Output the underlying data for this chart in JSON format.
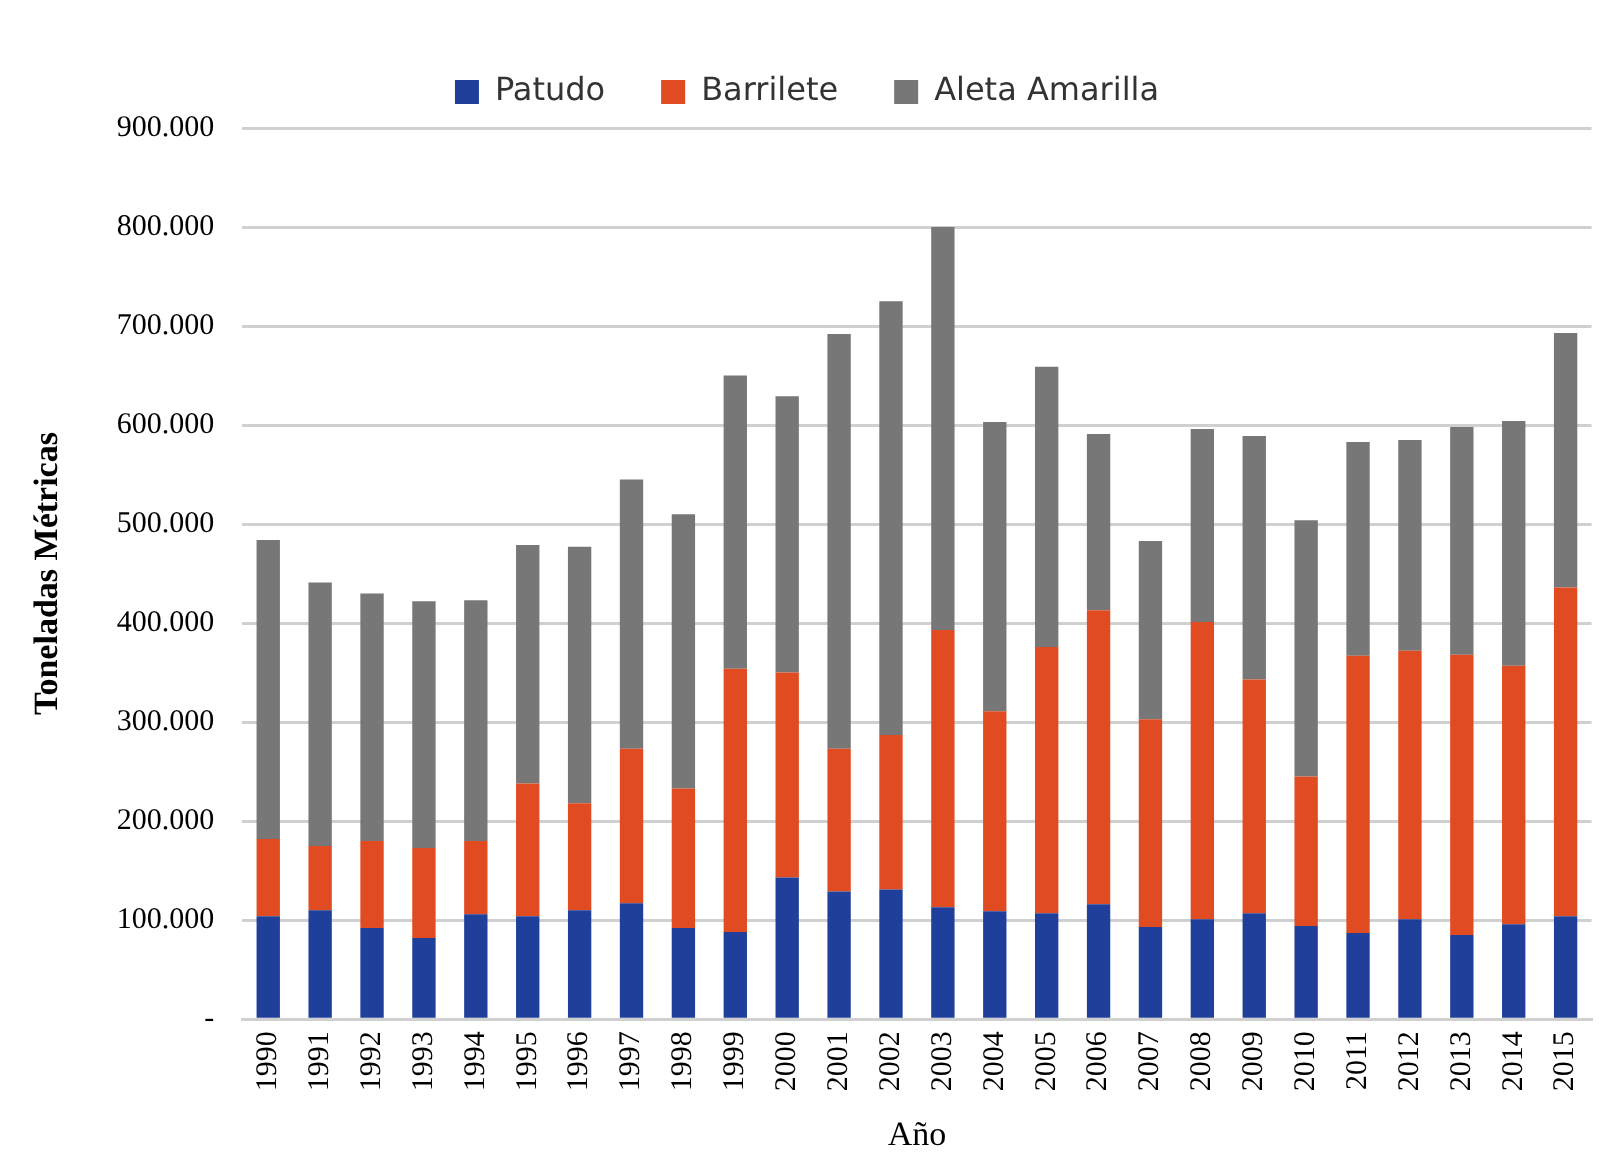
{
  "chart_data": {
    "type": "bar",
    "stacked": true,
    "xlabel": "Año",
    "ylabel": "Toneladas Métricas",
    "categories": [
      "1990",
      "1991",
      "1992",
      "1993",
      "1994",
      "1995",
      "1996",
      "1997",
      "1998",
      "1999",
      "2000",
      "2001",
      "2002",
      "2003",
      "2004",
      "2005",
      "2006",
      "2007",
      "2008",
      "2009",
      "2010",
      "2011",
      "2012",
      "2013",
      "2014",
      "2015"
    ],
    "series": [
      {
        "name": "Patudo",
        "color": "#1f3f9a",
        "values": [
          104000,
          110000,
          92000,
          82000,
          106000,
          104000,
          110000,
          117000,
          92000,
          88000,
          143000,
          129000,
          131000,
          113000,
          109000,
          107000,
          116000,
          93000,
          101000,
          107000,
          94000,
          87000,
          101000,
          85000,
          96000,
          104000
        ]
      },
      {
        "name": "Barrilete",
        "color": "#e04b22",
        "values": [
          78000,
          65000,
          88000,
          91000,
          74000,
          134000,
          108000,
          156000,
          141000,
          266000,
          207000,
          144000,
          156000,
          280000,
          202000,
          269000,
          297000,
          210000,
          300000,
          236000,
          151000,
          280000,
          271000,
          283000,
          261000,
          332000
        ]
      },
      {
        "name": "Aleta Amarilla",
        "color": "#777777",
        "values": [
          302000,
          266000,
          250000,
          249000,
          243000,
          241000,
          259000,
          272000,
          277000,
          296000,
          279000,
          419000,
          438000,
          407000,
          292000,
          283000,
          178000,
          180000,
          195000,
          246000,
          259000,
          216000,
          213000,
          230000,
          247000,
          257000
        ]
      }
    ],
    "ylim": [
      0,
      900000
    ],
    "yticks": [
      {
        "value": 0,
        "label": "-"
      },
      {
        "value": 100000,
        "label": "100.000"
      },
      {
        "value": 200000,
        "label": "200.000"
      },
      {
        "value": 300000,
        "label": "300.000"
      },
      {
        "value": 400000,
        "label": "400.000"
      },
      {
        "value": 500000,
        "label": "500.000"
      },
      {
        "value": 600000,
        "label": "600.000"
      },
      {
        "value": 700000,
        "label": "700.000"
      },
      {
        "value": 800000,
        "label": "800.000"
      },
      {
        "value": 900000,
        "label": "900.000"
      }
    ],
    "grid": "y",
    "legend": "top"
  }
}
